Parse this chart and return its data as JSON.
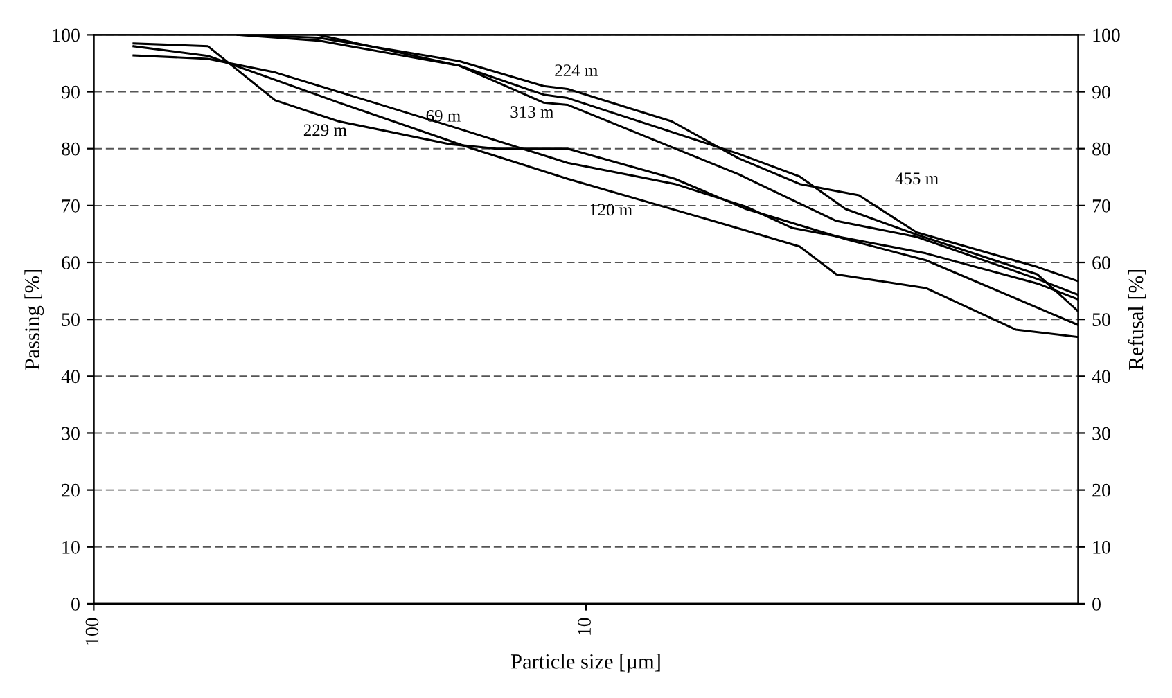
{
  "chart_data": {
    "type": "line",
    "xlabel": "Particle size [µm]",
    "ylabel": "Passing [%]",
    "y2label": "Refusal [%]",
    "log": "x",
    "xlim": [
      100,
      1
    ],
    "xticks": [
      100,
      10
    ],
    "ylim": [
      0,
      100
    ],
    "yticks": [
      0,
      10,
      20,
      30,
      40,
      50,
      60,
      70,
      80,
      90,
      100
    ],
    "y2lim": [
      0,
      100
    ],
    "y2ticks": [
      0,
      10,
      20,
      30,
      40,
      50,
      60,
      70,
      80,
      90,
      100
    ],
    "grid": "y",
    "marker": "none",
    "line_style": "solid",
    "series": [
      {
        "color": "#000000",
        "x": [
          51,
          35,
          18.1,
          12.2,
          10.9,
          6.7,
          4.9,
          3.68,
          2.79,
          2.13,
          1.21,
          1.0
        ],
        "values": [
          100,
          99.5,
          95.4,
          91,
          90.5,
          84.8,
          78.3,
          73.8,
          71.8,
          65.3,
          59.2,
          56.7
        ]
      },
      {
        "color": "#000000",
        "x": [
          35,
          18.1,
          12.2,
          10.9,
          4.9,
          3.68,
          2.97,
          2.13,
          1.21,
          1.0
        ],
        "values": [
          100,
          94.6,
          89.5,
          88.9,
          79.1,
          75.1,
          69.4,
          64.9,
          57.9,
          51.4
        ]
      },
      {
        "color": "#000000",
        "x": [
          51,
          35,
          18.1,
          12.2,
          10.9,
          4.9,
          3.1,
          2.13,
          1.21,
          1.0
        ],
        "values": [
          100,
          99,
          94.6,
          88.1,
          87.7,
          75.5,
          67.3,
          64.5,
          57.1,
          54.3
        ]
      },
      {
        "color": "#000000",
        "x": [
          83,
          58.6,
          42.8,
          31.8,
          18.9,
          15.2,
          10.9,
          6.6,
          4.73,
          2.97,
          2.04,
          1.0
        ],
        "values": [
          98.5,
          98,
          88.5,
          84.8,
          80.8,
          80,
          80,
          74.7,
          69.4,
          64.1,
          60.4,
          49
        ]
      },
      {
        "color": "#000000",
        "x": [
          83,
          58.6,
          42.8,
          18.9,
          10.9,
          6.6,
          4.73,
          3.82,
          2.04,
          1.21,
          1.0
        ],
        "values": [
          96.4,
          95.8,
          93.4,
          84,
          77.5,
          73.8,
          69.8,
          66.1,
          61.6,
          56.3,
          53.5
        ]
      },
      {
        "color": "#000000",
        "x": [
          83,
          58.6,
          31.8,
          17,
          10.9,
          4.9,
          3.68,
          3.1,
          2.04,
          1.34,
          1.0
        ],
        "values": [
          98,
          96.3,
          88.1,
          80,
          74.7,
          66,
          62.8,
          57.9,
          55.5,
          48.2,
          46.9
        ]
      }
    ],
    "annotations": [
      "224 m",
      "313 m",
      "69 m",
      "229 m",
      "120 m",
      "455 m"
    ]
  }
}
